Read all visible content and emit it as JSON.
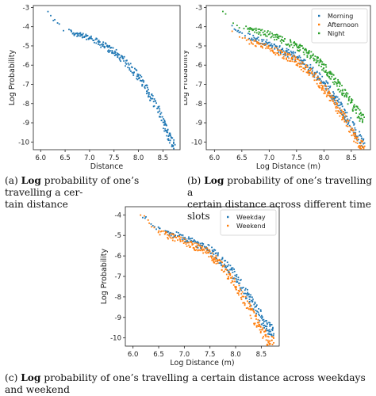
{
  "captions": {
    "a": {
      "tag": "(a)",
      "bold": "Log",
      "rest": "probability of one’s travelling a cer-",
      "line2": "tain distance"
    },
    "b": {
      "tag": "(b)",
      "bold": "Log",
      "rest": "probability of one’s travelling a",
      "line2": "certain distance across different time slots"
    },
    "c": {
      "tag": "(c)",
      "bold": "Log",
      "rest": "probability of one’s travelling a certain distance across weekdays and weekend"
    }
  },
  "chart_data": [
    {
      "type": "scatter",
      "id": "a",
      "xlabel": "Distance",
      "ylabel": "Log Probability",
      "xlim": [
        5.85,
        8.85
      ],
      "ylim": [
        -10.4,
        -2.9
      ],
      "xticks": [
        "6.0",
        "6.5",
        "7.0",
        "7.5",
        "8.0",
        "8.5"
      ],
      "yticks": [
        "-3",
        "-4",
        "-5",
        "-6",
        "-7",
        "-8",
        "-9",
        "-10"
      ],
      "series": [
        {
          "color": "#1f77b4",
          "trend": [
            [
              6.13,
              -3.25
            ],
            [
              6.45,
              -4.15
            ],
            [
              7.0,
              -4.55
            ],
            [
              7.5,
              -5.3
            ],
            [
              7.8,
              -6.0
            ],
            [
              8.0,
              -6.6
            ],
            [
              8.2,
              -7.4
            ],
            [
              8.4,
              -8.3
            ],
            [
              8.6,
              -9.6
            ],
            [
              8.75,
              -10.3
            ]
          ],
          "spread": 0.45
        }
      ]
    },
    {
      "type": "scatter",
      "id": "b",
      "xlabel": "Log Distance (m)",
      "ylabel": "Log Probability",
      "xlim": [
        5.85,
        8.85
      ],
      "ylim": [
        -10.4,
        -2.9
      ],
      "xticks": [
        "6.0",
        "6.5",
        "7.0",
        "7.5",
        "8.0",
        "8.5"
      ],
      "yticks": [
        "-3",
        "-4",
        "-5",
        "-6",
        "-7",
        "-8",
        "-9",
        "-10"
      ],
      "legend_position": "top-right",
      "series": [
        {
          "name": "Morning",
          "color": "#1f77b4",
          "trend": [
            [
              6.13,
              -3.4
            ],
            [
              6.45,
              -4.3
            ],
            [
              7.0,
              -4.9
            ],
            [
              7.5,
              -5.6
            ],
            [
              7.8,
              -6.3
            ],
            [
              8.0,
              -6.9
            ],
            [
              8.2,
              -7.7
            ],
            [
              8.4,
              -8.6
            ],
            [
              8.6,
              -9.6
            ],
            [
              8.75,
              -10.2
            ]
          ],
          "spread": 0.5
        },
        {
          "name": "Afternoon",
          "color": "#ff7f0e",
          "trend": [
            [
              6.13,
              -3.8
            ],
            [
              6.45,
              -4.6
            ],
            [
              7.0,
              -5.1
            ],
            [
              7.5,
              -5.8
            ],
            [
              7.8,
              -6.5
            ],
            [
              8.0,
              -7.2
            ],
            [
              8.2,
              -8.0
            ],
            [
              8.4,
              -8.9
            ],
            [
              8.6,
              -9.9
            ],
            [
              8.75,
              -10.3
            ]
          ],
          "spread": 0.5
        },
        {
          "name": "Night",
          "color": "#2ca02c",
          "trend": [
            [
              6.13,
              -3.2
            ],
            [
              6.45,
              -4.0
            ],
            [
              7.0,
              -4.4
            ],
            [
              7.5,
              -5.0
            ],
            [
              7.8,
              -5.6
            ],
            [
              8.0,
              -6.1
            ],
            [
              8.2,
              -6.8
            ],
            [
              8.4,
              -7.6
            ],
            [
              8.6,
              -8.4
            ],
            [
              8.75,
              -9.0
            ]
          ],
          "spread": 0.45
        }
      ]
    },
    {
      "type": "scatter",
      "id": "c",
      "xlabel": "Log Distance (m)",
      "ylabel": "Log Probability",
      "xlim": [
        5.85,
        8.85
      ],
      "ylim": [
        -10.4,
        -3.6
      ],
      "xticks": [
        "6.0",
        "6.5",
        "7.0",
        "7.5",
        "8.0",
        "8.5"
      ],
      "yticks": [
        "-4",
        "-5",
        "-6",
        "-7",
        "-8",
        "-9",
        "-10"
      ],
      "legend_position": "top-right",
      "series": [
        {
          "name": "Weekday",
          "color": "#1f77b4",
          "trend": [
            [
              6.13,
              -3.9
            ],
            [
              6.45,
              -4.7
            ],
            [
              7.0,
              -5.1
            ],
            [
              7.5,
              -5.7
            ],
            [
              7.8,
              -6.4
            ],
            [
              8.0,
              -7.0
            ],
            [
              8.2,
              -7.8
            ],
            [
              8.4,
              -8.6
            ],
            [
              8.6,
              -9.4
            ],
            [
              8.75,
              -9.8
            ]
          ],
          "spread": 0.5
        },
        {
          "name": "Weekend",
          "color": "#ff7f0e",
          "trend": [
            [
              6.13,
              -3.9
            ],
            [
              6.45,
              -4.8
            ],
            [
              7.0,
              -5.3
            ],
            [
              7.5,
              -5.9
            ],
            [
              7.8,
              -6.7
            ],
            [
              8.0,
              -7.4
            ],
            [
              8.2,
              -8.3
            ],
            [
              8.4,
              -9.2
            ],
            [
              8.6,
              -10.0
            ],
            [
              8.75,
              -10.3
            ]
          ],
          "spread": 0.5
        }
      ]
    }
  ]
}
